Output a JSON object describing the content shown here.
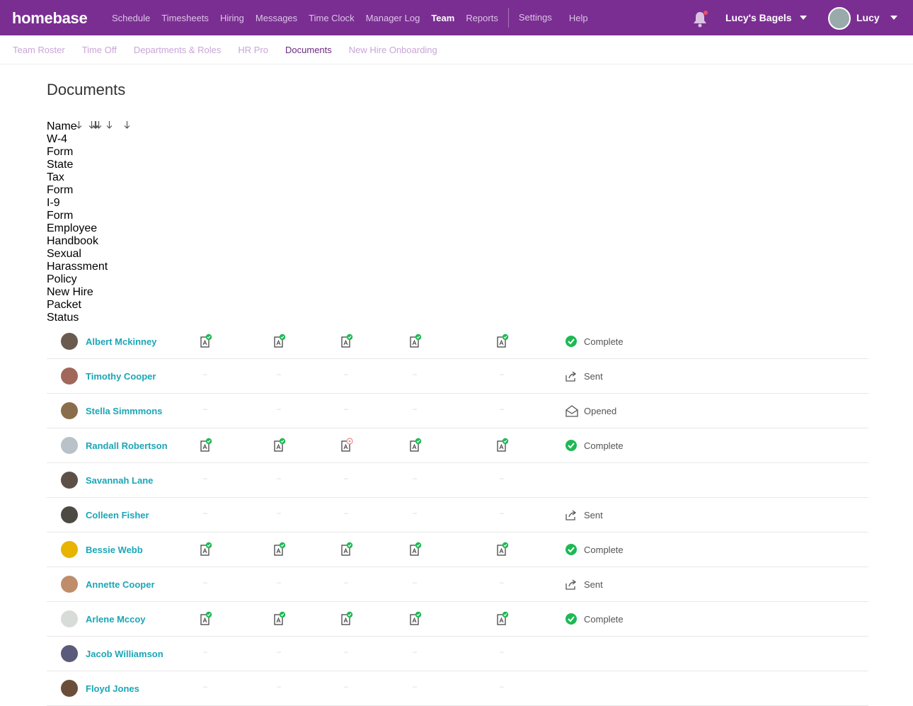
{
  "nav": {
    "brand": "homebase",
    "items": [
      "Schedule",
      "Timesheets",
      "Hiring",
      "Messages",
      "Time Clock",
      "Manager Log",
      "Team",
      "Reports",
      "Settings",
      "Help"
    ],
    "active_index": 6,
    "location": "Lucy's Bagels",
    "user": "Lucy"
  },
  "subnav": {
    "items": [
      "Team Roster",
      "Time Off",
      "Departments & Roles",
      "HR Pro",
      "Documents",
      "New Hire Onboarding"
    ],
    "active_index": 4
  },
  "page": {
    "title": "Documents"
  },
  "table": {
    "columns": [
      "Name",
      "W-4 Form",
      "State Tax Form",
      "I-9 Form",
      "Employee Handbook",
      "Sexual Harassment Policy",
      "New Hire Packet Status"
    ],
    "rows": [
      {
        "name": "Albert Mckinney",
        "documents": [
          "signed",
          "signed",
          "signed",
          "signed",
          "signed"
        ],
        "packet_status": "Complete"
      },
      {
        "name": "Timothy Cooper",
        "documents": [
          "–",
          "–",
          "–",
          "–",
          "–"
        ],
        "packet_status": "Sent"
      },
      {
        "name": "Stella Simmmons",
        "documents": [
          "–",
          "–",
          "–",
          "–",
          "–"
        ],
        "packet_status": "Opened"
      },
      {
        "name": "Randall Robertson",
        "documents": [
          "signed",
          "signed",
          "flagged",
          "signed",
          "signed"
        ],
        "packet_status": "Complete"
      },
      {
        "name": "Savannah Lane",
        "documents": [
          "–",
          "–",
          "–",
          "–",
          "–"
        ],
        "packet_status": null
      },
      {
        "name": "Colleen Fisher",
        "documents": [
          "–",
          "–",
          "–",
          "–",
          "–"
        ],
        "packet_status": "Sent"
      },
      {
        "name": "Bessie Webb",
        "documents": [
          "signed",
          "signed",
          "signed",
          "signed",
          "signed"
        ],
        "packet_status": "Complete"
      },
      {
        "name": "Annette Cooper",
        "documents": [
          "–",
          "–",
          "–",
          "–",
          "–"
        ],
        "packet_status": "Sent"
      },
      {
        "name": "Arlene Mccoy",
        "documents": [
          "signed",
          "signed",
          "signed",
          "signed",
          "signed"
        ],
        "packet_status": "Complete"
      },
      {
        "name": "Jacob Williamson",
        "documents": [
          "–",
          "–",
          "–",
          "–",
          "–"
        ],
        "packet_status": null
      },
      {
        "name": "Floyd Jones",
        "documents": [
          "–",
          "–",
          "–",
          "–",
          "–"
        ],
        "packet_status": null
      }
    ]
  }
}
